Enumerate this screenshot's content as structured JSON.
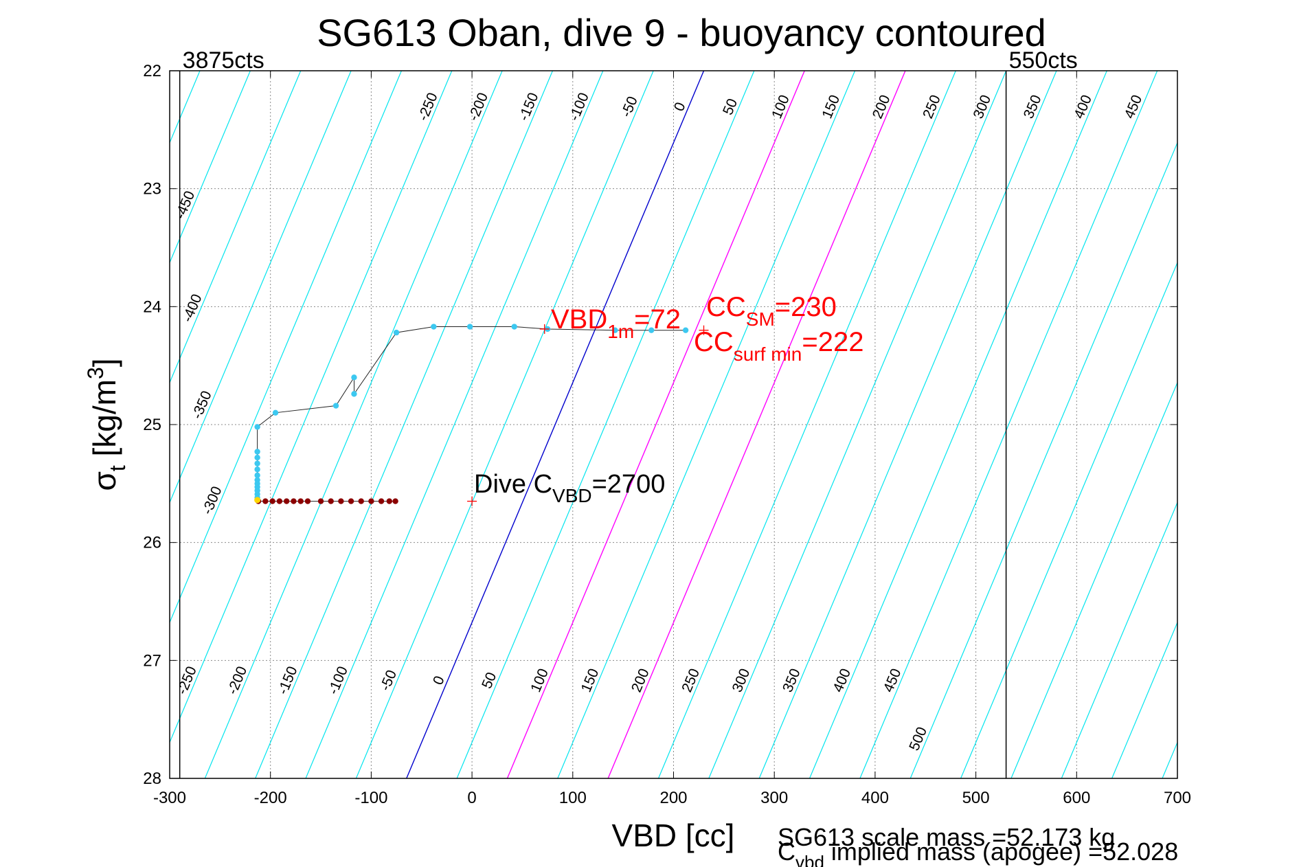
{
  "chart_data": {
    "type": "line",
    "title": "SG613 Oban, dive 9 - buoyancy contoured",
    "xlabel": "VBD [cc]",
    "ylabel": {
      "sigma": "σ",
      "sub": "t",
      "bracket": " [kg/m",
      "sup": "3",
      "close": "]"
    },
    "xlim": [
      -300,
      700
    ],
    "ylim": [
      22,
      28
    ],
    "y_reversed": true,
    "grid": true,
    "x_ticks": [
      "-300",
      "-200",
      "-100",
      "0",
      "100",
      "200",
      "300",
      "400",
      "500",
      "600",
      "700"
    ],
    "y_ticks": [
      "22",
      "23",
      "24",
      "25",
      "26",
      "27",
      "28"
    ],
    "vbd_limits": [
      {
        "x": -290,
        "label": "3875cts"
      },
      {
        "x": 530,
        "label": "550cts"
      }
    ],
    "contours": {
      "buoyancy_values": [
        -500,
        -450,
        -400,
        -350,
        -300,
        -250,
        -200,
        -150,
        -100,
        -50,
        0,
        50,
        100,
        150,
        200,
        250,
        300,
        350,
        400,
        450,
        500,
        550,
        600,
        650,
        700,
        750
      ],
      "zero_x_at_top": 230,
      "zero_x_at_bottom": -65,
      "colors": {
        "default": "#00e5ee",
        "zero": "#0000cd",
        "highlight": "#ff00ff"
      },
      "highlight_values": [
        100,
        200
      ],
      "top_labels": [
        "-250",
        "-200",
        "-150",
        "-100",
        "-50",
        "0",
        "50",
        "100",
        "150",
        "200",
        "250",
        "300",
        "350",
        "400",
        "450"
      ],
      "left_labels": [
        "-450",
        "-400",
        "-350",
        "-300"
      ],
      "bottom_labels": [
        "-250",
        "-200",
        "-150",
        "-100",
        "-50",
        "0",
        "50",
        "100",
        "150",
        "200",
        "250",
        "300",
        "350",
        "400",
        "450"
      ],
      "extra_labels": [
        "500"
      ]
    },
    "series": [
      {
        "color": "#3cc8f0",
        "x": [
          212,
          178,
          142,
          75,
          42,
          -2,
          -38,
          -75,
          -117,
          -117,
          -135,
          -195,
          -213,
          -213,
          -213,
          -213,
          -213,
          -213,
          -213,
          -213,
          -213,
          -213,
          -213,
          -213
        ],
        "y": [
          24.2,
          24.2,
          24.2,
          24.19,
          24.17,
          24.17,
          24.17,
          24.22,
          24.74,
          24.6,
          24.84,
          24.9,
          25.02,
          25.23,
          25.28,
          25.33,
          25.38,
          25.43,
          25.47,
          25.5,
          25.53,
          25.56,
          25.59,
          25.62
        ]
      },
      {
        "color": "#8b0000",
        "x": [
          -212,
          -205,
          -198,
          -191,
          -184,
          -177,
          -170,
          -163,
          -150,
          -140,
          -130,
          -120,
          -110,
          -100,
          -90,
          -82,
          -76
        ],
        "y": [
          25.65,
          25.65,
          25.65,
          25.65,
          25.65,
          25.65,
          25.65,
          25.65,
          25.65,
          25.65,
          25.65,
          25.65,
          25.65,
          25.65,
          25.65,
          25.65,
          25.65
        ]
      }
    ],
    "apogee_point": {
      "x": -213,
      "y": 25.64,
      "color": "#ffd700"
    },
    "markers": [
      {
        "x": 72,
        "y": 24.19
      },
      {
        "x": 230,
        "y": 24.2
      },
      {
        "x": 0,
        "y": 25.65
      }
    ],
    "annotations": {
      "vbd_1m": {
        "main": "VBD",
        "sub": "1m",
        "tail": "=72"
      },
      "cc_sm": {
        "main": "CC",
        "sub": "SM",
        "tail": "=230"
      },
      "cc_surf": {
        "main": "CC",
        "sub": "surf min",
        "tail": "=222"
      },
      "dive_cvbd": {
        "main": "Dive C",
        "sub": "VBD",
        "tail": "=2700"
      }
    },
    "footer": {
      "scale_mass": "SG613 scale mass =52.173 kg",
      "implied_mass": {
        "main": "C",
        "sub": "vbd",
        "tail": " implied mass (apogee) =52.028"
      }
    }
  }
}
